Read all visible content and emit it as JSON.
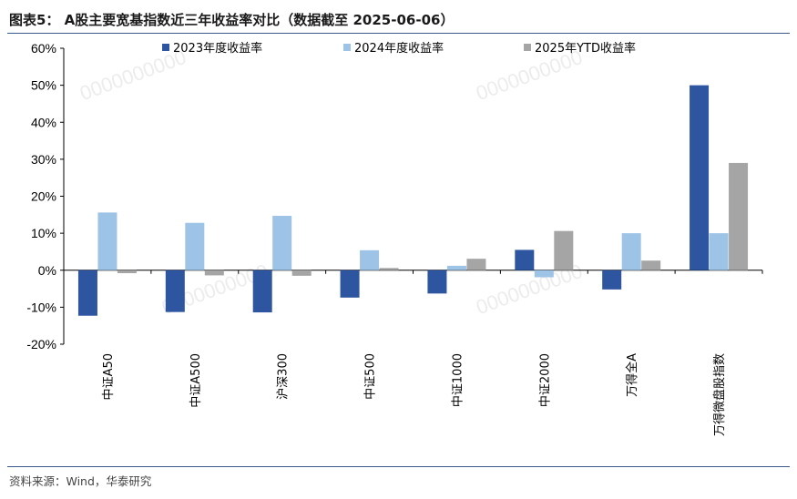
{
  "header": {
    "title": "图表5：  A股主要宽基指数近三年收益率对比（数据截至 2025-06-06）"
  },
  "footer": {
    "source": "资料来源：Wind，华泰研究"
  },
  "watermark": "0000000000",
  "chart_data": {
    "type": "bar",
    "title": "",
    "xlabel": "",
    "ylabel": "",
    "ylim": [
      -20,
      60
    ],
    "yticks": [
      "60%",
      "50%",
      "40%",
      "30%",
      "20%",
      "10%",
      "0%",
      "-10%",
      "-20%"
    ],
    "ytick_values": [
      60,
      50,
      40,
      30,
      20,
      10,
      0,
      -10,
      -20
    ],
    "legend_position": "top",
    "grid": false,
    "categories": [
      "中证A50",
      "中证A500",
      "沪深300",
      "中证500",
      "中证1000",
      "中证2000",
      "万得全A",
      "万得微盘股指数"
    ],
    "series": [
      {
        "name": "2023年度收益率",
        "color": "#2e55a0",
        "values": [
          -12.3,
          -11.3,
          -11.4,
          -7.4,
          -6.3,
          5.5,
          -5.2,
          50.0
        ]
      },
      {
        "name": "2024年度收益率",
        "color": "#9dc3e6",
        "values": [
          15.6,
          12.8,
          14.7,
          5.4,
          1.2,
          -1.9,
          10.0,
          10.0
        ]
      },
      {
        "name": "2025年YTD收益率",
        "color": "#a5a5a5",
        "values": [
          -0.8,
          -1.4,
          -1.5,
          0.6,
          3.1,
          10.6,
          2.6,
          29.0
        ]
      }
    ]
  }
}
